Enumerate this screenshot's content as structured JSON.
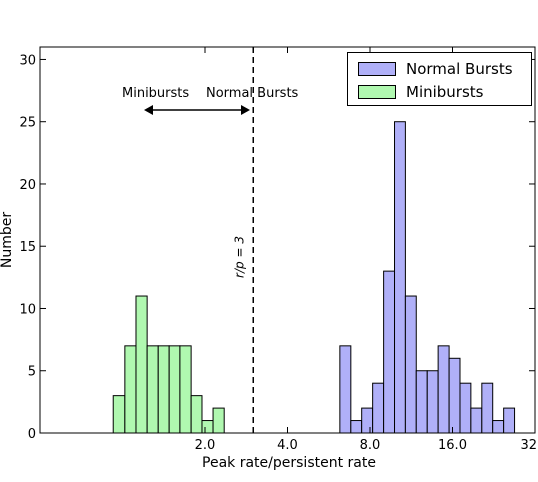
{
  "chart_data": {
    "type": "bar",
    "title": "",
    "xlabel": "Peak rate/persistent rate",
    "ylabel": "Number",
    "xscale": "log2",
    "xlim": [
      0.5,
      32
    ],
    "ylim": [
      0,
      31
    ],
    "xticks": [
      2,
      4,
      8,
      16,
      32
    ],
    "xtick_labels": [
      "2.0",
      "4.0",
      "8.0",
      "16.0",
      "32"
    ],
    "yticks": [
      0,
      5,
      10,
      15,
      20,
      25,
      30
    ],
    "ytick_labels": [
      "0",
      "5",
      "10",
      "15",
      "20",
      "25",
      "30"
    ],
    "grid": false,
    "legend_position": "top-right",
    "series": [
      {
        "name": "Normal Bursts",
        "color": "#b0b0f8",
        "bins": [
          {
            "x0": 6.21,
            "x1": 6.81,
            "value": 7
          },
          {
            "x0": 6.81,
            "x1": 7.46,
            "value": 1
          },
          {
            "x0": 7.46,
            "x1": 8.18,
            "value": 2
          },
          {
            "x0": 8.18,
            "x1": 8.97,
            "value": 4
          },
          {
            "x0": 8.97,
            "x1": 9.83,
            "value": 13
          },
          {
            "x0": 9.83,
            "x1": 10.77,
            "value": 25
          },
          {
            "x0": 10.77,
            "x1": 11.8,
            "value": 11
          },
          {
            "x0": 11.8,
            "x1": 12.94,
            "value": 5
          },
          {
            "x0": 12.94,
            "x1": 14.18,
            "value": 5
          },
          {
            "x0": 14.18,
            "x1": 15.55,
            "value": 7
          },
          {
            "x0": 15.55,
            "x1": 17.04,
            "value": 6
          },
          {
            "x0": 17.04,
            "x1": 18.67,
            "value": 4
          },
          {
            "x0": 18.67,
            "x1": 20.47,
            "value": 2
          },
          {
            "x0": 20.47,
            "x1": 22.43,
            "value": 4
          },
          {
            "x0": 22.43,
            "x1": 24.59,
            "value": 1
          },
          {
            "x0": 24.59,
            "x1": 26.95,
            "value": 2
          }
        ]
      },
      {
        "name": "Minibursts",
        "color": "#b0f8b0",
        "bins": [
          {
            "x0": 0.925,
            "x1": 1.02,
            "value": 3
          },
          {
            "x0": 1.02,
            "x1": 1.12,
            "value": 7
          },
          {
            "x0": 1.12,
            "x1": 1.23,
            "value": 11
          },
          {
            "x0": 1.23,
            "x1": 1.35,
            "value": 7
          },
          {
            "x0": 1.35,
            "x1": 1.48,
            "value": 7
          },
          {
            "x0": 1.48,
            "x1": 1.62,
            "value": 7
          },
          {
            "x0": 1.62,
            "x1": 1.78,
            "value": 7
          },
          {
            "x0": 1.78,
            "x1": 1.95,
            "value": 3
          },
          {
            "x0": 1.95,
            "x1": 2.14,
            "value": 1
          },
          {
            "x0": 2.14,
            "x1": 2.35,
            "value": 2
          }
        ]
      }
    ],
    "threshold": {
      "x": 3,
      "style": "dashed",
      "label": "r/p = 3"
    },
    "annotations": {
      "left": "Minibursts",
      "right": "Normal Bursts"
    }
  }
}
